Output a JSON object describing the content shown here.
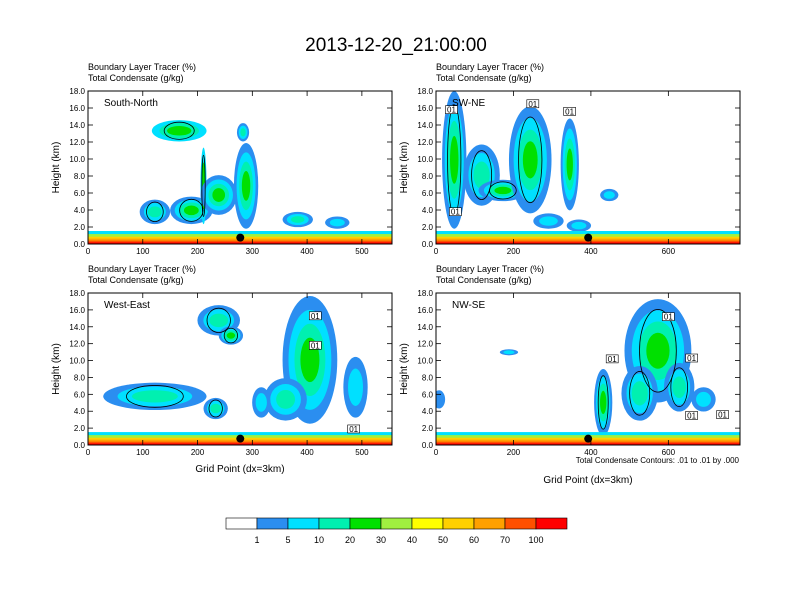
{
  "figure": {
    "title": "2013-12-20_21:00:00",
    "contour_note": "Total Condensate Contours: .01 to .01 by .000"
  },
  "colors": {
    "levels": [
      "#ffffff",
      "#2b8ef0",
      "#00e0ff",
      "#00f0b0",
      "#00e000",
      "#a0f040",
      "#ffff00",
      "#ffd000",
      "#ffa000",
      "#ff5000",
      "#ff0000"
    ],
    "contour": "#000000",
    "marker": "#000000"
  },
  "chart_data": [
    {
      "type": "heatmap",
      "panel_label": "South-North",
      "subtitle_line1": "Boundary Layer Tracer   (%)",
      "subtitle_line2": "Total Condensate   (g/kg)",
      "ylabel": "Height (km)",
      "xlabel": "",
      "xlim": [
        0,
        555
      ],
      "ylim": [
        0,
        18
      ],
      "xticks": [
        0,
        100,
        200,
        300,
        400,
        500
      ],
      "yticks": [
        0.0,
        2.0,
        4.0,
        6.0,
        8.0,
        10.0,
        12.0,
        14.0,
        16.0,
        18.0
      ],
      "marker_x": 278,
      "contour_labels": []
    },
    {
      "type": "heatmap",
      "panel_label": "SW-NE",
      "subtitle_line1": "Boundary Layer Tracer   (%)",
      "subtitle_line2": "Total Condensate   (g/kg)",
      "ylabel": "Height (km)",
      "xlabel": "",
      "xlim": [
        0,
        785
      ],
      "ylim": [
        0,
        18
      ],
      "xticks": [
        0,
        200,
        400,
        600
      ],
      "yticks": [
        0.0,
        2.0,
        4.0,
        6.0,
        8.0,
        10.0,
        12.0,
        14.0,
        16.0,
        18.0
      ],
      "marker_x": 393,
      "contour_labels": [
        {
          "x": 40,
          "y": 15.8,
          "text": "01"
        },
        {
          "x": 250,
          "y": 16.5,
          "text": "01"
        },
        {
          "x": 345,
          "y": 15.6,
          "text": "01"
        },
        {
          "x": 50,
          "y": 3.8,
          "text": "01"
        }
      ]
    },
    {
      "type": "heatmap",
      "panel_label": "West-East",
      "subtitle_line1": "Boundary Layer Tracer   (%)",
      "subtitle_line2": "Total Condensate   (g/kg)",
      "ylabel": "Height (km)",
      "xlabel": "Grid Point (dx=3km)",
      "xlim": [
        0,
        555
      ],
      "ylim": [
        0,
        18
      ],
      "xticks": [
        0,
        100,
        200,
        300,
        400,
        500
      ],
      "yticks": [
        0.0,
        2.0,
        4.0,
        6.0,
        8.0,
        10.0,
        12.0,
        14.0,
        16.0,
        18.0
      ],
      "marker_x": 278,
      "contour_labels": [
        {
          "x": 415,
          "y": 15.3,
          "text": "01"
        },
        {
          "x": 415,
          "y": 11.8,
          "text": "01"
        },
        {
          "x": 485,
          "y": 1.9,
          "text": "01"
        }
      ]
    },
    {
      "type": "heatmap",
      "panel_label": "NW-SE",
      "subtitle_line1": "Boundary Layer Tracer   (%)",
      "subtitle_line2": "Total Condensate   (g/kg)",
      "ylabel": "Height (km)",
      "xlabel": "Grid Point (dx=3km)",
      "xlim": [
        0,
        785
      ],
      "ylim": [
        0,
        18
      ],
      "xticks": [
        0,
        200,
        400,
        600
      ],
      "yticks": [
        0.0,
        2.0,
        4.0,
        6.0,
        8.0,
        10.0,
        12.0,
        14.0,
        16.0,
        18.0
      ],
      "marker_x": 393,
      "contour_labels": [
        {
          "x": 455,
          "y": 10.2,
          "text": "01"
        },
        {
          "x": 600,
          "y": 15.2,
          "text": "01"
        },
        {
          "x": 660,
          "y": 10.3,
          "text": "01"
        },
        {
          "x": 660,
          "y": 3.5,
          "text": "01"
        },
        {
          "x": 740,
          "y": 3.6,
          "text": "01"
        }
      ]
    }
  ],
  "colorbar": {
    "labels": [
      "1",
      "5",
      "10",
      "20",
      "30",
      "40",
      "50",
      "60",
      "70",
      "100"
    ]
  }
}
